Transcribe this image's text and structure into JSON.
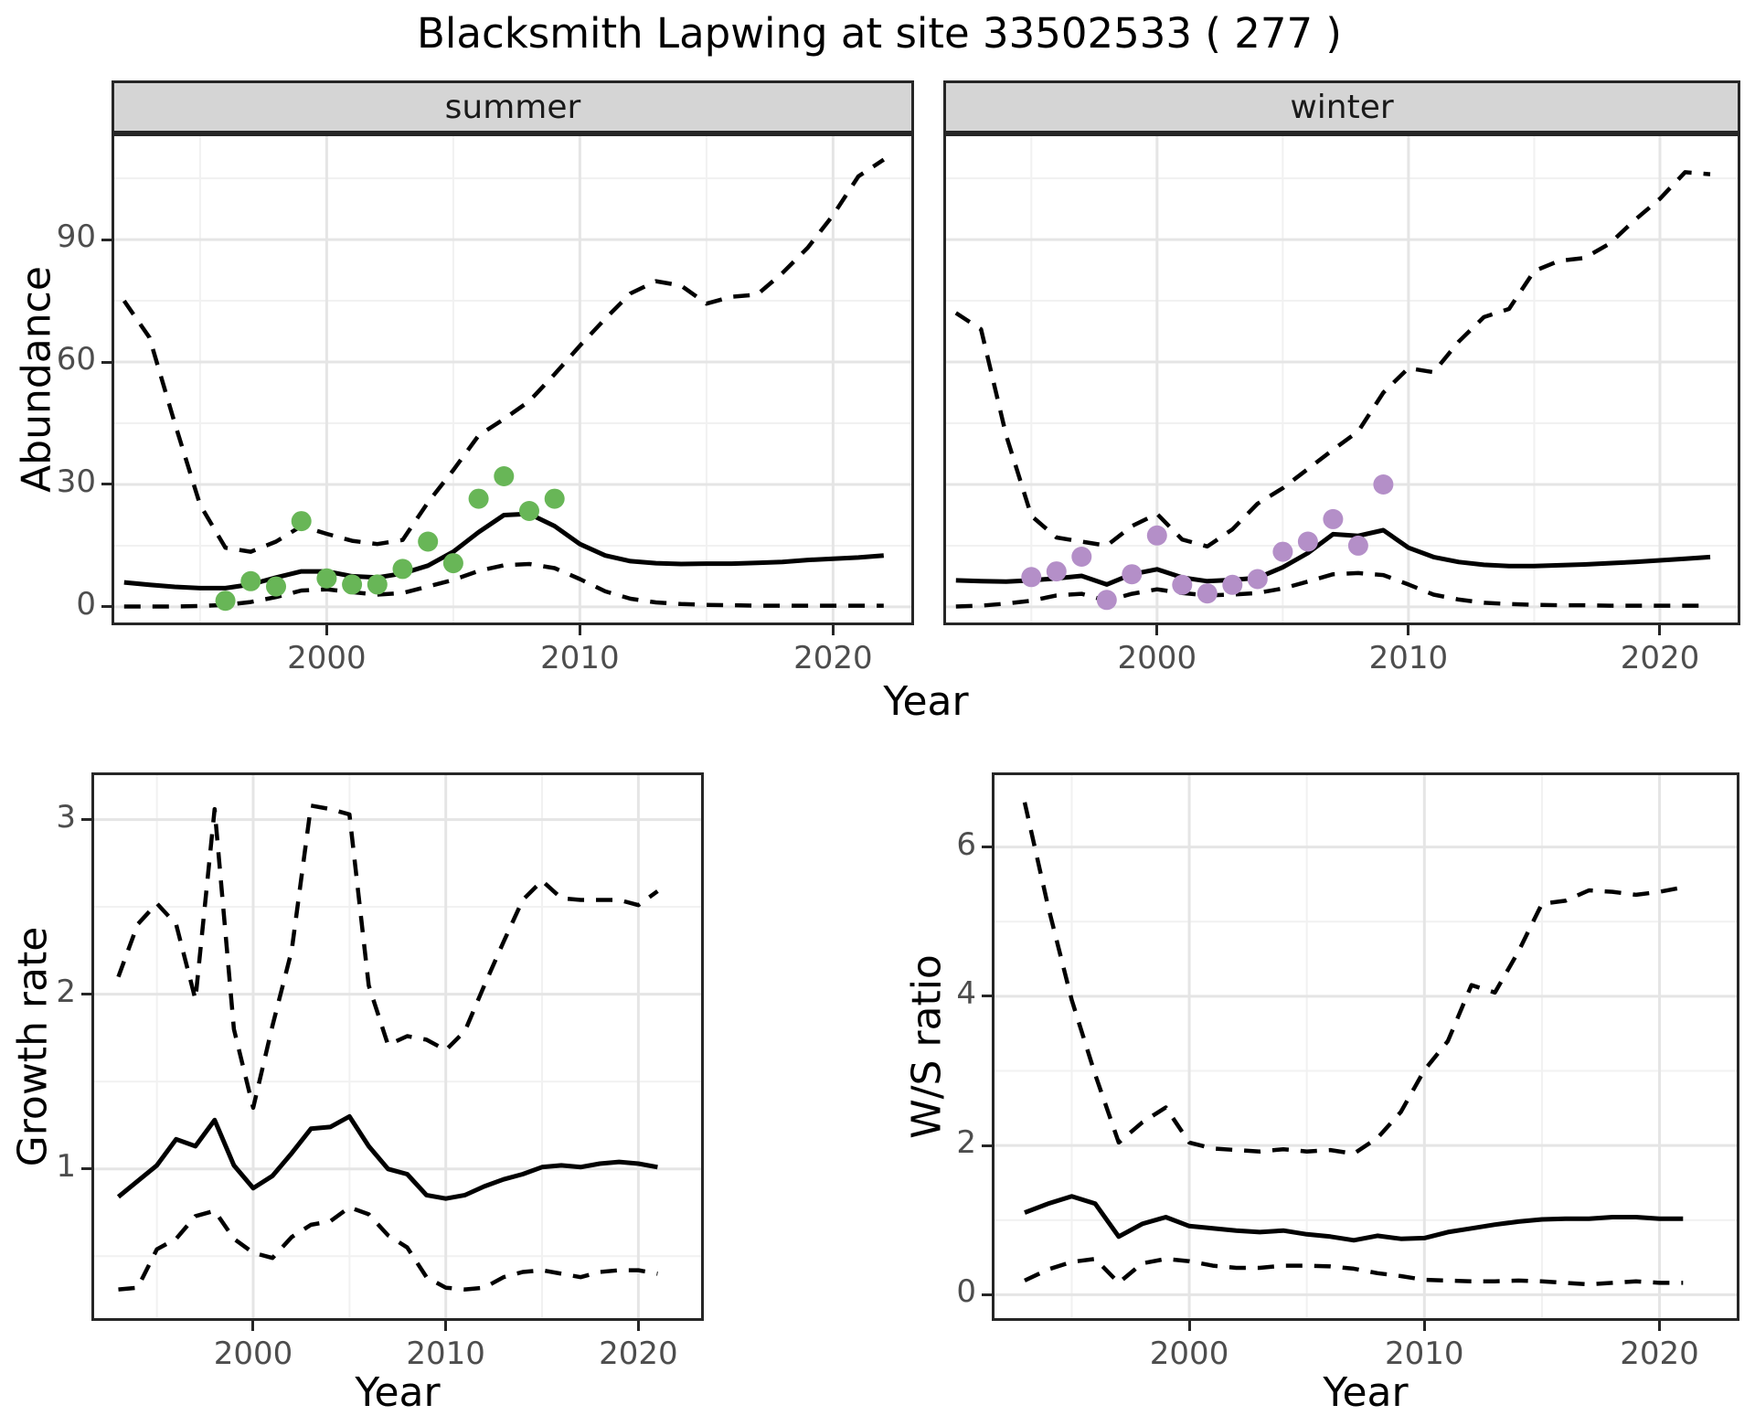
{
  "title": "Blacksmith Lapwing at site 33502533 ( 277 )",
  "colors": {
    "summer_points": "#68b657",
    "winter_points": "#b48fc8",
    "fit_line": "#000000",
    "ci_line": "#000000",
    "strip_fill": "#d5d5d5",
    "panel_border": "#262626",
    "grid_major": "#e5e5e5",
    "grid_minor": "#f1f1f1",
    "axis_text": "#4d4d4d"
  },
  "chart_data": {
    "type": "line",
    "grid": "on",
    "legend": "none",
    "abundance": {
      "ylabel": "Abundance",
      "xlabel": "Year",
      "facet_labels": [
        "summer",
        "winter"
      ],
      "x_ticks": [
        2000,
        2010,
        2020
      ],
      "x_minor": [
        1995,
        2005,
        2015
      ],
      "y_ticks": [
        0,
        30,
        60,
        90
      ],
      "y_minor": [
        15,
        45,
        75,
        105
      ],
      "xlim": [
        1991.5,
        2023.2
      ],
      "ylim": [
        -4.5,
        116
      ],
      "facets": [
        {
          "label": "summer",
          "point_color": "#68b657",
          "years": [
            1992,
            1993,
            1994,
            1995,
            1996,
            1997,
            1998,
            1999,
            2000,
            2001,
            2002,
            2003,
            2004,
            2005,
            2006,
            2007,
            2008,
            2009,
            2010,
            2011,
            2012,
            2013,
            2014,
            2015,
            2016,
            2017,
            2018,
            2019,
            2020,
            2021,
            2022
          ],
          "fit": [
            6,
            5.4,
            4.9,
            4.6,
            4.6,
            5.5,
            7.2,
            8.7,
            8.7,
            7.5,
            7.2,
            8.2,
            10.1,
            13.5,
            18.3,
            22.5,
            22.8,
            19.8,
            15.4,
            12.6,
            11.2,
            10.7,
            10.5,
            10.6,
            10.6,
            10.8,
            11,
            11.5,
            11.8,
            12.1,
            12.6
          ],
          "ci_upper": [
            75,
            66,
            45,
            25,
            14.5,
            13.5,
            16,
            19.8,
            17.9,
            16.2,
            15.4,
            16.4,
            25.6,
            33.5,
            42,
            46,
            50.4,
            57,
            64,
            70.6,
            76.8,
            79.8,
            78.7,
            74.3,
            76,
            76.5,
            81.8,
            88,
            96,
            105.5,
            109.6
          ],
          "ci_lower": [
            0.1,
            0.1,
            0.1,
            0.2,
            0.5,
            1.2,
            2.4,
            4,
            4.3,
            3.6,
            3,
            3.4,
            5,
            6.6,
            8.8,
            10.2,
            10.5,
            9.5,
            6.8,
            3.8,
            2,
            1.1,
            0.7,
            0.5,
            0.4,
            0.3,
            0.3,
            0.3,
            0.3,
            0.3,
            0.3
          ],
          "obs_years": [
            1996,
            1997,
            1998,
            1999,
            2000,
            2001,
            2002,
            2003,
            2004,
            2005,
            2006,
            2007,
            2008,
            2009
          ],
          "obs_values": [
            1.5,
            6.3,
            5,
            21,
            7,
            5.5,
            5.5,
            9.3,
            16,
            10.7,
            26.5,
            32,
            23.5,
            26.5
          ]
        },
        {
          "label": "winter",
          "point_color": "#b48fc8",
          "years": [
            1992,
            1993,
            1994,
            1995,
            1996,
            1997,
            1998,
            1999,
            2000,
            2001,
            2002,
            2003,
            2004,
            2005,
            2006,
            2007,
            2008,
            2009,
            2010,
            2011,
            2012,
            2013,
            2014,
            2015,
            2016,
            2017,
            2018,
            2019,
            2020,
            2021,
            2022
          ],
          "fit": [
            6.5,
            6.3,
            6.2,
            6.5,
            7,
            7.6,
            5.5,
            8,
            9.2,
            7.2,
            6.3,
            6.6,
            7.1,
            9.7,
            13.2,
            17.8,
            17.4,
            18.8,
            14.5,
            12.2,
            11,
            10.3,
            10,
            10,
            10.2,
            10.4,
            10.7,
            11,
            11.4,
            11.8,
            12.2
          ],
          "ci_upper": [
            72,
            68,
            42,
            22.3,
            17,
            16,
            15,
            19.8,
            22.8,
            16.5,
            14.8,
            19,
            25.3,
            29.1,
            33.8,
            38.5,
            43,
            52.5,
            58.5,
            57.5,
            65,
            71,
            73,
            82.3,
            84.8,
            85.5,
            89,
            94.8,
            100,
            106.5,
            106
          ],
          "ci_lower": [
            0.1,
            0.3,
            0.8,
            1.5,
            2.8,
            3.2,
            1.5,
            3.2,
            4.3,
            3.4,
            2.8,
            3,
            3.4,
            4.5,
            6.2,
            8,
            8.3,
            7.8,
            5.5,
            3,
            1.8,
            1,
            0.7,
            0.5,
            0.4,
            0.4,
            0.3,
            0.3,
            0.3,
            0.3,
            0.3
          ],
          "obs_years": [
            1995,
            1996,
            1997,
            1998,
            1999,
            2000,
            2001,
            2002,
            2003,
            2004,
            2005,
            2006,
            2007,
            2008,
            2009
          ],
          "obs_values": [
            7.3,
            8.7,
            12.3,
            1.7,
            8,
            17.5,
            5.4,
            3.3,
            5.4,
            6.8,
            13.5,
            16,
            21.5,
            15,
            30
          ]
        }
      ]
    },
    "growth_rate": {
      "ylabel": "Growth rate",
      "xlabel": "Year",
      "x_ticks": [
        2000,
        2010,
        2020
      ],
      "x_minor": [
        1995,
        2005,
        2015
      ],
      "y_ticks": [
        1,
        2,
        3
      ],
      "y_minor": [
        0.5,
        1.5,
        2.5
      ],
      "xlim": [
        1991.6,
        2023.4
      ],
      "ylim": [
        0.13,
        3.27
      ],
      "series": {
        "years": [
          1993,
          1994,
          1995,
          1996,
          1997,
          1998,
          1999,
          2000,
          2001,
          2002,
          2003,
          2004,
          2005,
          2006,
          2007,
          2008,
          2009,
          2010,
          2011,
          2012,
          2013,
          2014,
          2015,
          2016,
          2017,
          2018,
          2019,
          2020,
          2021
        ],
        "fit": [
          0.84,
          0.93,
          1.02,
          1.17,
          1.13,
          1.28,
          1.02,
          0.89,
          0.96,
          1.09,
          1.23,
          1.24,
          1.3,
          1.13,
          1,
          0.97,
          0.85,
          0.83,
          0.85,
          0.9,
          0.94,
          0.97,
          1.01,
          1.02,
          1.01,
          1.03,
          1.04,
          1.03,
          1.01
        ],
        "ci_upper": [
          2.1,
          2.4,
          2.52,
          2.4,
          1.97,
          3.06,
          1.8,
          1.35,
          1.82,
          2.25,
          3.08,
          3.06,
          3.03,
          2.05,
          1.71,
          1.76,
          1.74,
          1.68,
          1.79,
          2.05,
          2.3,
          2.54,
          2.65,
          2.55,
          2.54,
          2.54,
          2.54,
          2.51,
          2.59
        ],
        "ci_lower": [
          0.31,
          0.32,
          0.54,
          0.6,
          0.73,
          0.76,
          0.6,
          0.52,
          0.49,
          0.61,
          0.68,
          0.7,
          0.78,
          0.74,
          0.62,
          0.55,
          0.38,
          0.32,
          0.31,
          0.32,
          0.38,
          0.41,
          0.42,
          0.4,
          0.38,
          0.41,
          0.42,
          0.42,
          0.4
        ]
      }
    },
    "ws_ratio": {
      "ylabel": "W/S ratio",
      "xlabel": "Year",
      "x_ticks": [
        2000,
        2010,
        2020
      ],
      "x_minor": [
        1995,
        2005,
        2015
      ],
      "y_ticks": [
        0,
        2,
        4,
        6
      ],
      "y_minor": [
        1,
        3,
        5
      ],
      "xlim": [
        1991.6,
        2023.4
      ],
      "ylim": [
        -0.35,
        7.0
      ],
      "series": {
        "years": [
          1993,
          1994,
          1995,
          1996,
          1997,
          1998,
          1999,
          2000,
          2001,
          2002,
          2003,
          2004,
          2005,
          2006,
          2007,
          2008,
          2009,
          2010,
          2011,
          2012,
          2013,
          2014,
          2015,
          2016,
          2017,
          2018,
          2019,
          2020,
          2021
        ],
        "fit": [
          1.1,
          1.22,
          1.32,
          1.22,
          0.78,
          0.95,
          1.04,
          0.92,
          0.89,
          0.86,
          0.84,
          0.86,
          0.81,
          0.78,
          0.73,
          0.79,
          0.75,
          0.76,
          0.84,
          0.89,
          0.94,
          0.98,
          1.01,
          1.02,
          1.02,
          1.04,
          1.04,
          1.02,
          1.02
        ],
        "ci_upper": [
          6.6,
          5.2,
          3.95,
          2.95,
          2.04,
          2.31,
          2.51,
          2.04,
          1.96,
          1.94,
          1.92,
          1.95,
          1.92,
          1.94,
          1.89,
          2.1,
          2.45,
          3.01,
          3.4,
          4.15,
          4.05,
          4.6,
          5.24,
          5.28,
          5.42,
          5.4,
          5.36,
          5.4,
          5.46
        ],
        "ci_lower": [
          0.19,
          0.34,
          0.44,
          0.48,
          0.16,
          0.42,
          0.48,
          0.45,
          0.39,
          0.36,
          0.36,
          0.39,
          0.39,
          0.38,
          0.35,
          0.29,
          0.25,
          0.2,
          0.19,
          0.18,
          0.18,
          0.19,
          0.18,
          0.16,
          0.14,
          0.16,
          0.18,
          0.16,
          0.16
        ]
      }
    }
  }
}
